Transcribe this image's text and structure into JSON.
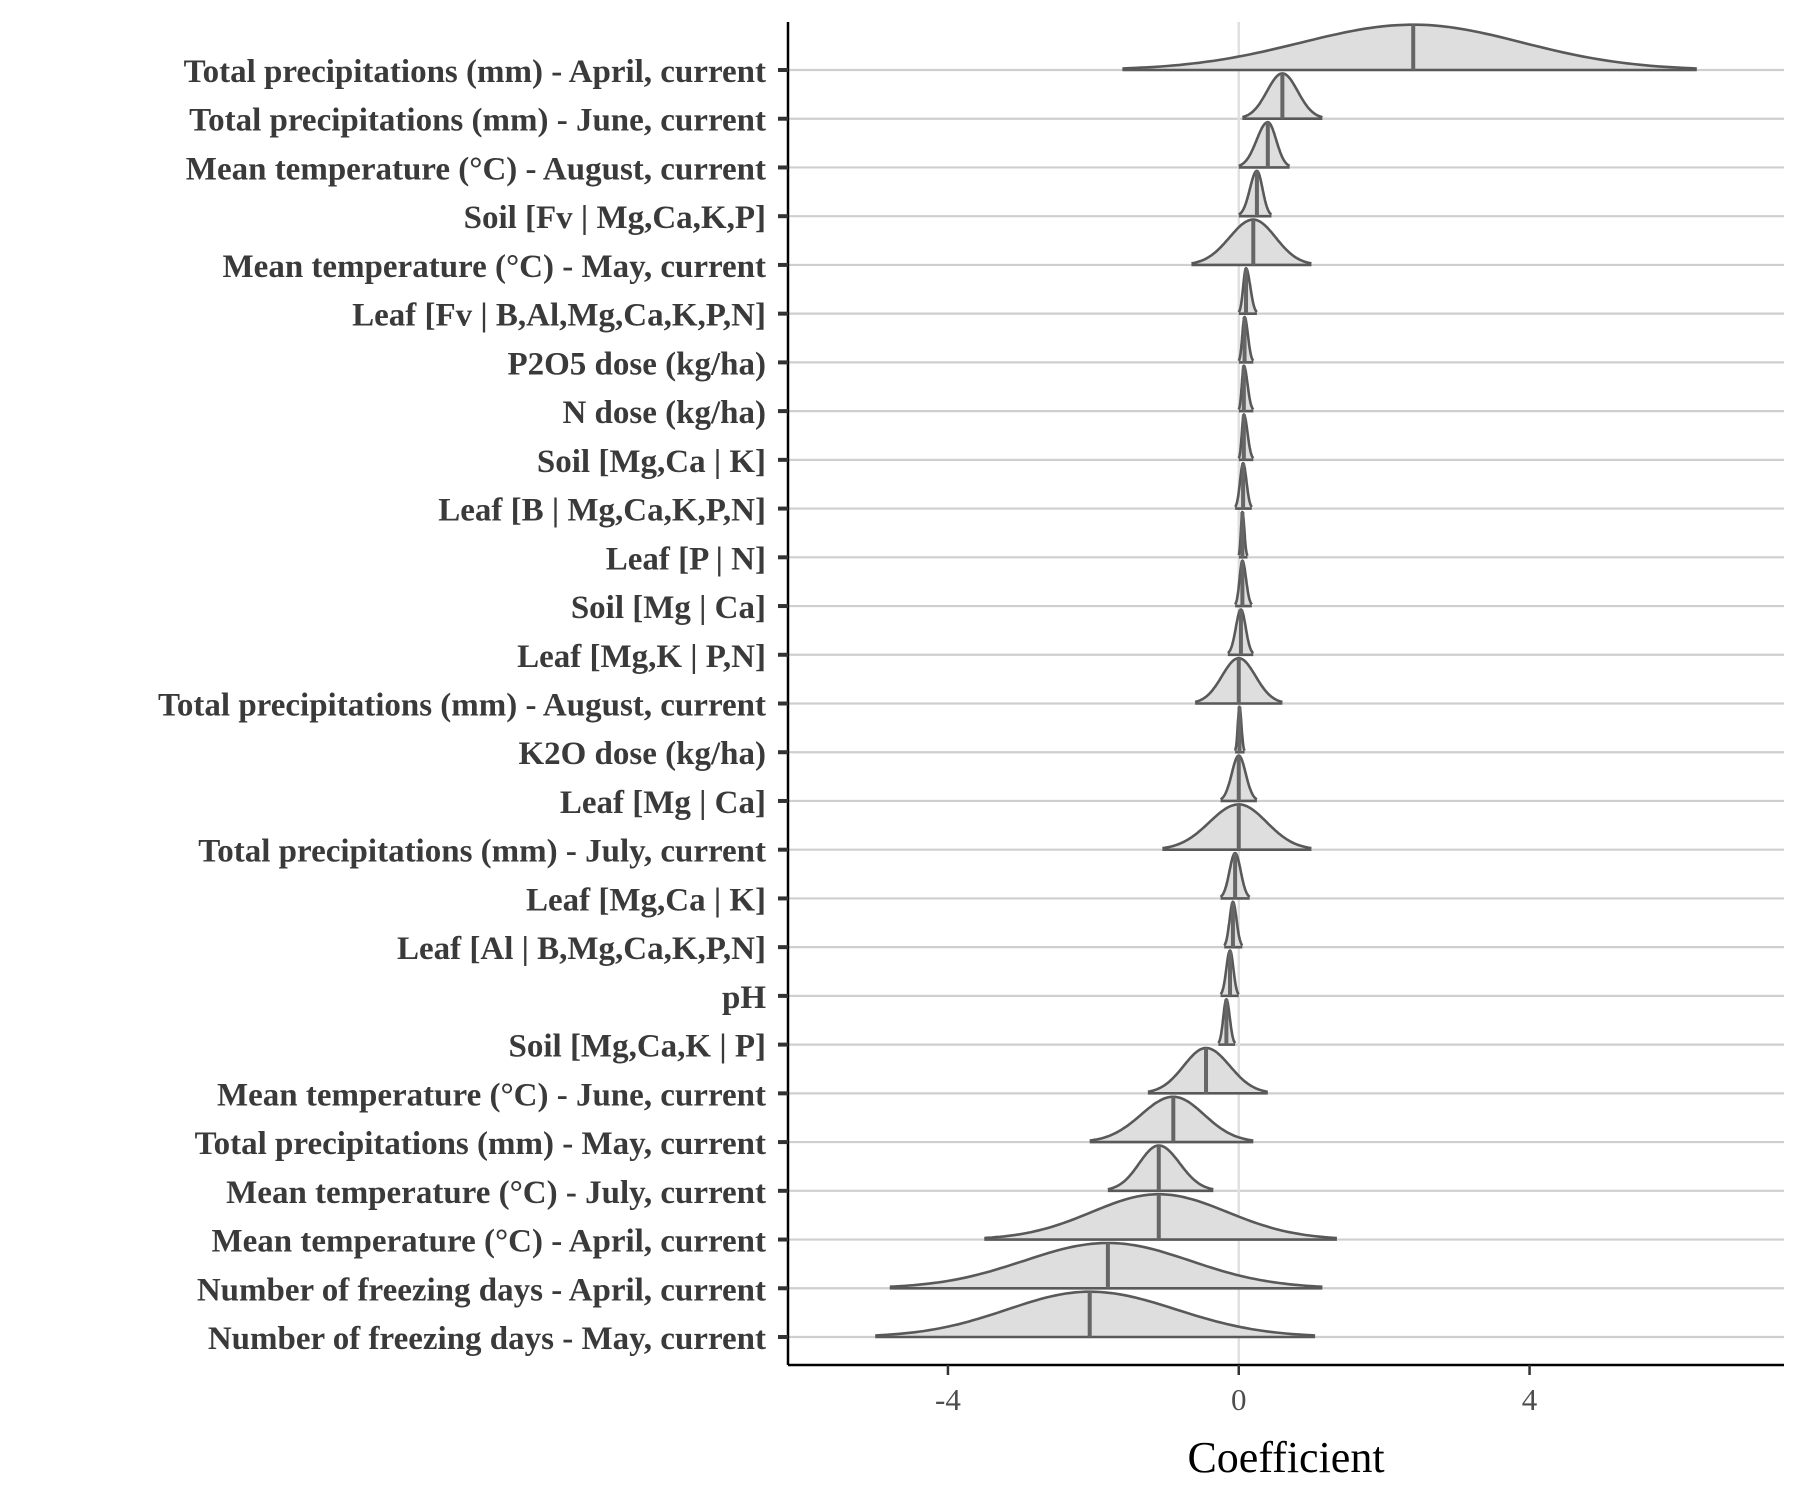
{
  "chart_data": {
    "type": "ridgeline",
    "xlabel": "Coefficient",
    "ylabel": "",
    "xlim": [
      -6.2,
      7.5
    ],
    "xticks": [
      -4,
      0,
      4
    ],
    "xtick_labels": [
      "-4",
      "0",
      "4"
    ],
    "vline_at": 0,
    "grid": "horizontal baselines per variable, vertical line at zero",
    "fill_color": "#dedede",
    "line_color": "#595959",
    "variables": [
      {
        "label": "Total precipitations (mm) - April, current",
        "median": 2.4,
        "min": -1.6,
        "max": 6.3
      },
      {
        "label": "Total precipitations (mm) - June, current",
        "median": 0.6,
        "min": 0.05,
        "max": 1.15
      },
      {
        "label": "Mean temperature (°C) - August, current",
        "median": 0.4,
        "min": 0.0,
        "max": 0.7
      },
      {
        "label": "Soil [Fv | Mg,Ca,K,P]",
        "median": 0.25,
        "min": 0.0,
        "max": 0.45
      },
      {
        "label": "Mean temperature (°C) - May, current",
        "median": 0.2,
        "min": -0.65,
        "max": 1.0
      },
      {
        "label": "Leaf [Fv | B,Al,Mg,Ca,K,P,N]",
        "median": 0.1,
        "min": 0.0,
        "max": 0.25
      },
      {
        "label": "P2O5 dose (kg/ha)",
        "median": 0.08,
        "min": 0.0,
        "max": 0.2
      },
      {
        "label": "N dose (kg/ha)",
        "median": 0.07,
        "min": 0.0,
        "max": 0.2
      },
      {
        "label": "Soil [Mg,Ca | K]",
        "median": 0.07,
        "min": 0.0,
        "max": 0.2
      },
      {
        "label": "Leaf [B | Mg,Ca,K,P,N]",
        "median": 0.06,
        "min": -0.05,
        "max": 0.18
      },
      {
        "label": "Leaf [P | N]",
        "median": 0.05,
        "min": 0.0,
        "max": 0.12
      },
      {
        "label": "Soil [Mg | Ca]",
        "median": 0.05,
        "min": -0.05,
        "max": 0.18
      },
      {
        "label": "Leaf [Mg,K | P,N]",
        "median": 0.03,
        "min": -0.15,
        "max": 0.2
      },
      {
        "label": "Total precipitations (mm) - August, current",
        "median": 0.0,
        "min": -0.6,
        "max": 0.6
      },
      {
        "label": "K2O dose (kg/ha)",
        "median": 0.01,
        "min": -0.05,
        "max": 0.08
      },
      {
        "label": "Leaf [Mg | Ca]",
        "median": 0.0,
        "min": -0.25,
        "max": 0.25
      },
      {
        "label": "Total precipitations (mm) - July, current",
        "median": 0.0,
        "min": -1.05,
        "max": 1.0
      },
      {
        "label": "Leaf [Mg,Ca | K]",
        "median": -0.05,
        "min": -0.25,
        "max": 0.15
      },
      {
        "label": "Leaf [Al | B,Mg,Ca,K,P,N]",
        "median": -0.08,
        "min": -0.2,
        "max": 0.05
      },
      {
        "label": "pH",
        "median": -0.12,
        "min": -0.25,
        "max": 0.0
      },
      {
        "label": "Soil [Mg,Ca,K | P]",
        "median": -0.17,
        "min": -0.28,
        "max": -0.05
      },
      {
        "label": "Mean temperature (°C) - June, current",
        "median": -0.45,
        "min": -1.25,
        "max": 0.4
      },
      {
        "label": "Total precipitations (mm) - May, current",
        "median": -0.9,
        "min": -2.05,
        "max": 0.2
      },
      {
        "label": "Mean temperature (°C) - July, current",
        "median": -1.1,
        "min": -1.8,
        "max": -0.35
      },
      {
        "label": "Mean temperature (°C) - April, current",
        "median": -1.1,
        "min": -3.5,
        "max": 1.35
      },
      {
        "label": "Number of freezing days - April, current",
        "median": -1.8,
        "min": -4.8,
        "max": 1.15
      },
      {
        "label": "Number of freezing days - May, current",
        "median": -2.05,
        "min": -5.0,
        "max": 1.05
      }
    ]
  }
}
